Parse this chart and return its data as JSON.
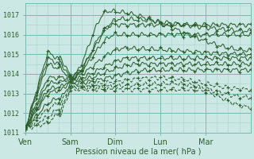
{
  "xlabel": "Pression niveau de la mer( hPa )",
  "background_color": "#cce8e4",
  "grid_minor_color": "#a8d4ce",
  "grid_major_color": "#7ab8b0",
  "line_color": "#2d5e2d",
  "text_color": "#2d5e2d",
  "ylim": [
    1011.0,
    1017.6
  ],
  "yticks": [
    1011,
    1012,
    1013,
    1014,
    1015,
    1016,
    1017
  ],
  "x_day_labels": [
    "Ven",
    "Sam",
    "Dim",
    "Lun",
    "Mar"
  ],
  "x_day_positions": [
    0,
    24,
    48,
    72,
    96
  ],
  "total_hours": 120
}
